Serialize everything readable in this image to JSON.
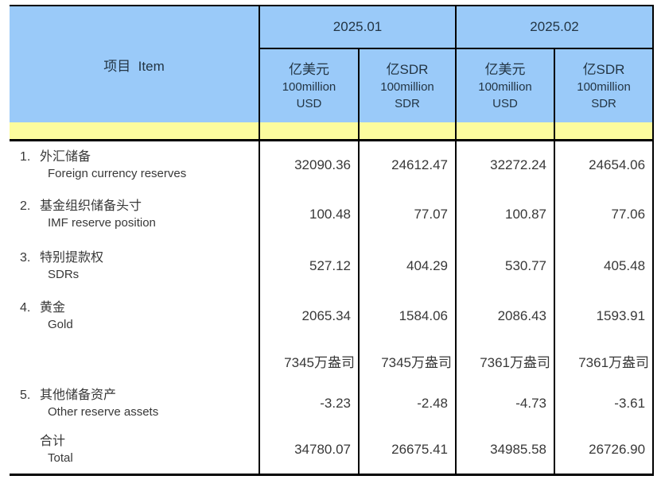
{
  "colors": {
    "header_blue": "#9ACAF9",
    "stripe_yellow": "#FCFC9E",
    "border_black": "#000000",
    "header_text": "#233544",
    "body_text": "#383838"
  },
  "table": {
    "item_header": "项目  Item",
    "periods": [
      "2025.01",
      "2025.02"
    ],
    "unit_headers": [
      {
        "cn": "亿美元",
        "l2": "100million",
        "l3": "USD"
      },
      {
        "cn": "亿SDR",
        "l2": "100million",
        "l3": "SDR"
      },
      {
        "cn": "亿美元",
        "l2": "100million",
        "l3": "USD"
      },
      {
        "cn": "亿SDR",
        "l2": "100million",
        "l3": "SDR"
      }
    ],
    "rows": [
      {
        "no": "1.",
        "cn": "外汇储备",
        "en": "Foreign currency reserves",
        "values": [
          "32090.36",
          "24612.47",
          "32272.24",
          "24654.06"
        ]
      },
      {
        "no": "2.",
        "cn": "基金组织储备头寸",
        "en": "IMF reserve position",
        "values": [
          "100.48",
          "77.07",
          "100.87",
          "77.06"
        ]
      },
      {
        "no": "3.",
        "cn": "特别提款权",
        "en": "SDRs",
        "values": [
          "527.12",
          "404.29",
          "530.77",
          "405.48"
        ]
      },
      {
        "no": "4.",
        "cn": "黄金",
        "en": "Gold",
        "values": [
          "2065.34",
          "1584.06",
          "2086.43",
          "1593.91"
        ]
      },
      {
        "no": "",
        "cn": "",
        "en": "",
        "values": [
          "7345万盎司",
          "7345万盎司",
          "7361万盎司",
          "7361万盎司"
        ]
      },
      {
        "no": "5.",
        "cn": "其他储备资产",
        "en": "Other reserve assets",
        "values": [
          "-3.23",
          "-2.48",
          "-4.73",
          "-3.61"
        ]
      },
      {
        "no": "",
        "cn": "合计",
        "en": "Total",
        "values": [
          "34780.07",
          "26675.41",
          "34985.58",
          "26726.90"
        ]
      }
    ]
  },
  "chart_data": {
    "type": "table",
    "columns": [
      "项目 Item",
      "2025.01 亿美元 100million USD",
      "2025.01 亿SDR 100million SDR",
      "2025.02 亿美元 100million USD",
      "2025.02 亿SDR 100million SDR"
    ],
    "rows": [
      [
        "1. 外汇储备 Foreign currency reserves",
        32090.36,
        24612.47,
        32272.24,
        24654.06
      ],
      [
        "2. 基金组织储备头寸 IMF reserve position",
        100.48,
        77.07,
        100.87,
        77.06
      ],
      [
        "3. 特别提款权 SDRs",
        527.12,
        404.29,
        530.77,
        405.48
      ],
      [
        "4. 黄金 Gold",
        2065.34,
        1584.06,
        2086.43,
        1593.91
      ],
      [
        "",
        "7345万盎司",
        "7345万盎司",
        "7361万盎司",
        "7361万盎司"
      ],
      [
        "5. 其他储备资产 Other reserve assets",
        -3.23,
        -2.48,
        -4.73,
        -3.61
      ],
      [
        "合计 Total",
        34780.07,
        26675.41,
        34985.58,
        26726.9
      ]
    ]
  }
}
